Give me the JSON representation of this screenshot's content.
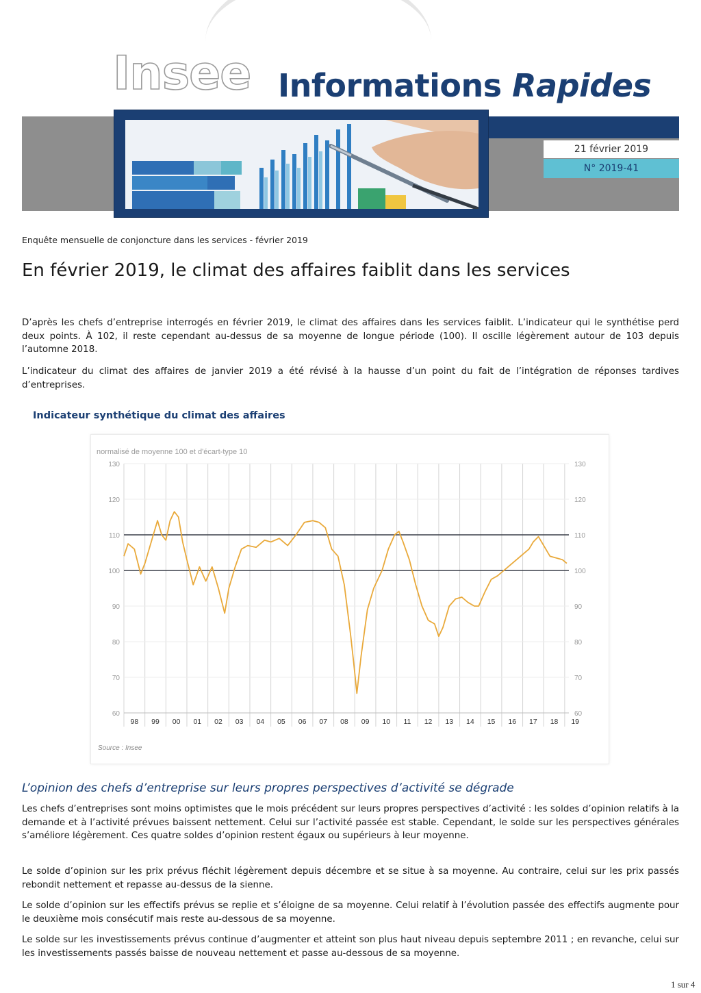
{
  "header": {
    "logo_text": "Insee",
    "title_regular": "Informations ",
    "title_italic": "Rapides",
    "date": "21 février 2019",
    "number": "N° 2019-41"
  },
  "article": {
    "kicker": "Enquête mensuelle de conjoncture dans les services - février 2019",
    "headline": "En février 2019, le climat des affaires faiblit dans les services",
    "intro_paragraphs": [
      "D’après les chefs d’entreprise interrogés en février 2019, le climat des affaires dans les services faiblit. L’indicateur qui le synthétise perd deux points. À 102, il reste cependant au-dessus de sa moyenne de longue période (100). Il oscille légèrement autour de 103 depuis l’automne 2018.",
      "L’indicateur du climat des affaires de janvier 2019 a été révisé à la hausse d’un point du fait de l’intégration de réponses tardives d’entreprises."
    ],
    "chart_heading": "Indicateur synthétique du climat des affaires",
    "section_title": "L’opinion des chefs d’entreprise sur leurs propres perspectives d’activité se dégrade",
    "body_paragraphs": [
      "Les chefs d’entreprises sont moins optimistes que le mois précédent sur leurs propres perspectives d’activité : les soldes d’opinion relatifs à la demande et à l’activité prévues baissent nettement. Celui sur l’activité passée est stable. Cependant, le solde sur les perspectives générales s’améliore légèrement. Ces quatre soldes d’opinion restent égaux ou supérieurs à leur moyenne.",
      "Le solde d’opinion sur les prix prévus fléchit légèrement depuis décembre et se situe à sa moyenne. Au contraire, celui sur les prix passés rebondit nettement et repasse au-dessus de la sienne.",
      "Le solde d’opinion sur les effectifs prévus se replie et s’éloigne de sa moyenne. Celui relatif à l’évolution passée des effectifs augmente pour le deuxième mois consécutif mais reste au-dessous de sa moyenne.",
      "Le solde sur les investissements prévus continue d’augmenter et atteint son plus haut niveau depuis septembre 2011 ; en revanche, celui sur les investissements passés baisse de nouveau nettement et passe au-dessous de sa moyenne."
    ]
  },
  "page": {
    "number": "1 sur 4"
  },
  "colors": {
    "navy": "#1b3f73",
    "cyan": "#5fc0d3",
    "grey": "#8e8e8e",
    "series": "#e9a93a"
  },
  "chart_data": {
    "type": "line",
    "subtitle": "normalisé de moyenne 100 et d'écart-type 10",
    "source": "Source : Insee",
    "ylim": [
      60,
      130
    ],
    "yticks": [
      60,
      70,
      80,
      90,
      100,
      110,
      120,
      130
    ],
    "x_range": [
      1998,
      2019.2
    ],
    "categories": [
      "98",
      "99",
      "00",
      "01",
      "02",
      "03",
      "04",
      "05",
      "06",
      "07",
      "08",
      "09",
      "10",
      "11",
      "12",
      "13",
      "14",
      "15",
      "16",
      "17",
      "18",
      "19"
    ],
    "reference_lines": [
      100,
      110
    ],
    "grid": "vertical",
    "series": [
      {
        "color": "#e9a93a",
        "x": [
          1998.0,
          1998.2,
          1998.5,
          1998.8,
          1999.0,
          1999.3,
          1999.6,
          1999.8,
          2000.0,
          2000.2,
          2000.4,
          2000.6,
          2000.8,
          2001.0,
          2001.3,
          2001.6,
          2001.9,
          2002.2,
          2002.5,
          2002.8,
          2003.0,
          2003.3,
          2003.6,
          2003.9,
          2004.3,
          2004.7,
          2005.0,
          2005.4,
          2005.8,
          2006.2,
          2006.6,
          2007.0,
          2007.3,
          2007.6,
          2007.9,
          2008.2,
          2008.5,
          2008.8,
          2008.95,
          2009.1,
          2009.3,
          2009.6,
          2009.9,
          2010.3,
          2010.6,
          2010.9,
          2011.1,
          2011.3,
          2011.6,
          2011.9,
          2012.2,
          2012.5,
          2012.8,
          2013.0,
          2013.2,
          2013.5,
          2013.8,
          2014.1,
          2014.4,
          2014.7,
          2014.9,
          2015.2,
          2015.5,
          2015.8,
          2016.1,
          2016.4,
          2016.7,
          2017.0,
          2017.3,
          2017.5,
          2017.75,
          2018.0,
          2018.3,
          2018.6,
          2018.9,
          2019.1
        ],
        "y": [
          104,
          107.5,
          106,
          99,
          102,
          108,
          114,
          110,
          108.5,
          114,
          116.5,
          115,
          108,
          103,
          96,
          101,
          97,
          101,
          95,
          88,
          95,
          101,
          106,
          107,
          106.5,
          108.5,
          108,
          109,
          107,
          110,
          113.5,
          114,
          113.5,
          112,
          106,
          104,
          96,
          82,
          74,
          65.5,
          76,
          89,
          95,
          100,
          106,
          110,
          111,
          108,
          103,
          96,
          90,
          86,
          85,
          81.5,
          84,
          90,
          92,
          92.5,
          91,
          90,
          90,
          94,
          97.5,
          98.5,
          100,
          101.5,
          103,
          104.5,
          106,
          108,
          109.5,
          107,
          104,
          103.5,
          103,
          102
        ]
      }
    ]
  }
}
